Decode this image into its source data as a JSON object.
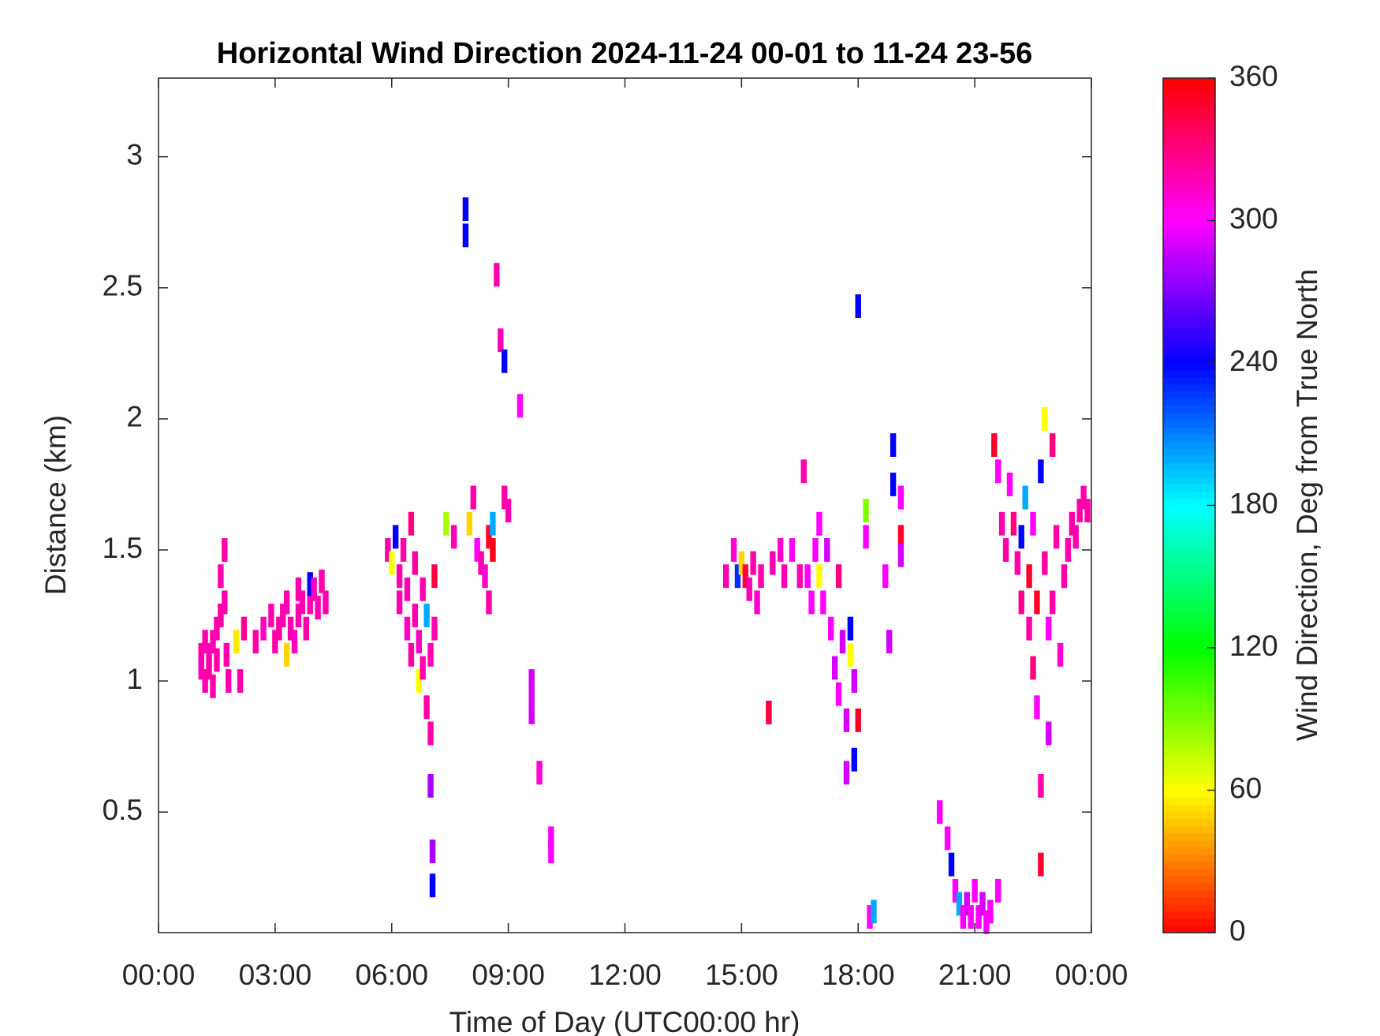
{
  "chart_data": {
    "type": "heatmap",
    "title": "Horizontal Wind Direction 2024-11-24 00-01 to 11-24 23-56",
    "xlabel": "Time of Day (UTC00:00 hr)",
    "ylabel": "Distance (km)",
    "colorbar_label": "Wind Direction, Deg from True North",
    "colormap": "hsv",
    "xlim": [
      0,
      24
    ],
    "xticks": [
      {
        "value": 0,
        "label": "00:00"
      },
      {
        "value": 3,
        "label": "03:00"
      },
      {
        "value": 6,
        "label": "06:00"
      },
      {
        "value": 9,
        "label": "09:00"
      },
      {
        "value": 12,
        "label": "12:00"
      },
      {
        "value": 15,
        "label": "15:00"
      },
      {
        "value": 18,
        "label": "18:00"
      },
      {
        "value": 21,
        "label": "21:00"
      },
      {
        "value": 24,
        "label": "00:00"
      }
    ],
    "ylim": [
      0.04,
      3.3
    ],
    "yticks": [
      0.5,
      1,
      1.5,
      2,
      2.5,
      3
    ],
    "clim": [
      0,
      360
    ],
    "cticks": [
      0,
      60,
      120,
      180,
      240,
      300,
      360
    ],
    "x": [
      1.1,
      1.1,
      1.2,
      1.2,
      1.3,
      1.3,
      1.4,
      1.4,
      1.5,
      1.5,
      1.6,
      1.6,
      1.7,
      1.7,
      1.75,
      1.8,
      2.0,
      2.1,
      2.2,
      2.5,
      2.7,
      2.9,
      3.0,
      3.1,
      3.2,
      3.3,
      3.3,
      3.4,
      3.5,
      3.6,
      3.6,
      3.7,
      3.8,
      3.9,
      3.9,
      4.0,
      4.1,
      4.2,
      4.3,
      5.9,
      6.0,
      6.1,
      6.2,
      6.2,
      6.3,
      6.4,
      6.4,
      6.5,
      6.5,
      6.6,
      6.6,
      6.7,
      6.7,
      6.8,
      6.8,
      6.9,
      6.9,
      7.0,
      7.0,
      7.0,
      7.05,
      7.05,
      7.1,
      7.1,
      7.4,
      7.6,
      7.9,
      7.9,
      8.0,
      8.1,
      8.2,
      8.3,
      8.4,
      8.5,
      8.5,
      8.6,
      8.6,
      8.7,
      8.8,
      8.9,
      8.9,
      9.0,
      9.3,
      9.6,
      9.6,
      9.6,
      9.8,
      10.1,
      10.1,
      14.6,
      14.8,
      14.9,
      15.0,
      15.1,
      15.2,
      15.3,
      15.4,
      15.5,
      15.7,
      15.8,
      16.0,
      16.1,
      16.3,
      16.5,
      16.6,
      16.7,
      16.8,
      16.9,
      17.0,
      17.0,
      17.1,
      17.2,
      17.3,
      17.4,
      17.5,
      17.5,
      17.6,
      17.7,
      17.7,
      17.8,
      17.8,
      17.9,
      17.9,
      18.0,
      18.0,
      18.2,
      18.2,
      18.3,
      18.4,
      18.7,
      18.8,
      18.9,
      18.9,
      19.1,
      19.1,
      19.1,
      20.1,
      20.3,
      20.4,
      20.5,
      20.6,
      20.7,
      20.8,
      20.9,
      21.0,
      21.1,
      21.2,
      21.3,
      21.4,
      21.6,
      21.5,
      21.6,
      21.7,
      21.8,
      21.9,
      22.0,
      22.1,
      22.2,
      22.2,
      22.3,
      22.4,
      22.4,
      22.5,
      22.5,
      22.6,
      22.6,
      22.7,
      22.7,
      22.7,
      22.8,
      22.8,
      22.9,
      22.9,
      23.0,
      23.0,
      23.1,
      23.2,
      23.3,
      23.4,
      23.5,
      23.6,
      23.7,
      23.8,
      23.9
    ],
    "y": [
      1.1,
      1.05,
      1.15,
      1.0,
      1.05,
      1.1,
      0.98,
      1.15,
      1.2,
      1.08,
      1.25,
      1.4,
      1.5,
      1.3,
      1.1,
      1.0,
      1.15,
      1.0,
      1.2,
      1.15,
      1.2,
      1.25,
      1.15,
      1.2,
      1.25,
      1.1,
      1.3,
      1.2,
      1.15,
      1.25,
      1.35,
      1.3,
      1.2,
      1.3,
      1.37,
      1.35,
      1.28,
      1.38,
      1.3,
      1.5,
      1.45,
      1.55,
      1.4,
      1.3,
      1.5,
      1.2,
      1.35,
      1.6,
      1.1,
      1.25,
      1.45,
      1.0,
      1.15,
      1.35,
      1.05,
      1.25,
      0.9,
      1.1,
      0.8,
      0.6,
      0.35,
      0.22,
      1.2,
      1.4,
      1.6,
      1.55,
      2.7,
      2.8,
      1.6,
      1.7,
      1.5,
      1.45,
      1.4,
      1.55,
      1.3,
      1.5,
      1.6,
      2.55,
      2.3,
      2.22,
      1.7,
      1.65,
      2.05,
      0.95,
      1.0,
      0.88,
      0.65,
      0.4,
      0.35,
      1.4,
      1.5,
      1.4,
      1.45,
      1.4,
      1.35,
      1.45,
      1.3,
      1.4,
      0.88,
      1.45,
      1.5,
      1.4,
      1.5,
      1.4,
      1.8,
      1.4,
      1.3,
      1.5,
      1.4,
      1.6,
      1.3,
      1.5,
      1.2,
      1.05,
      1.4,
      0.95,
      1.15,
      0.85,
      0.65,
      1.1,
      1.2,
      0.7,
      1.0,
      0.85,
      2.43,
      1.55,
      1.65,
      0.1,
      0.12,
      1.4,
      1.15,
      1.9,
      1.75,
      1.7,
      1.55,
      1.48,
      0.5,
      0.4,
      0.3,
      0.2,
      0.15,
      0.1,
      0.15,
      0.1,
      0.2,
      0.1,
      0.15,
      0.08,
      0.12,
      0.2,
      1.9,
      1.8,
      1.6,
      1.5,
      1.75,
      1.6,
      1.45,
      1.3,
      1.55,
      1.7,
      1.4,
      1.2,
      1.6,
      1.05,
      1.3,
      0.9,
      1.8,
      0.6,
      0.3,
      2.0,
      1.45,
      1.2,
      0.8,
      1.9,
      1.3,
      1.55,
      1.1,
      1.4,
      1.5,
      1.6,
      1.55,
      1.65,
      1.7,
      1.65
    ],
    "values": [
      320,
      315,
      320,
      318,
      322,
      318,
      320,
      316,
      318,
      320,
      322,
      320,
      320,
      318,
      320,
      318,
      55,
      320,
      325,
      320,
      315,
      318,
      320,
      322,
      318,
      50,
      318,
      320,
      315,
      318,
      320,
      318,
      320,
      318,
      240,
      315,
      318,
      320,
      318,
      320,
      60,
      240,
      320,
      318,
      320,
      315,
      318,
      330,
      320,
      318,
      320,
      60,
      315,
      318,
      318,
      200,
      320,
      318,
      320,
      280,
      280,
      240,
      318,
      345,
      80,
      318,
      240,
      240,
      50,
      320,
      300,
      320,
      310,
      350,
      320,
      355,
      200,
      318,
      318,
      240,
      320,
      318,
      300,
      290,
      290,
      290,
      310,
      300,
      300,
      318,
      310,
      230,
      50,
      345,
      318,
      320,
      310,
      318,
      345,
      318,
      310,
      318,
      300,
      318,
      318,
      300,
      300,
      300,
      60,
      300,
      300,
      290,
      300,
      290,
      330,
      300,
      290,
      290,
      290,
      60,
      240,
      240,
      290,
      350,
      240,
      300,
      90,
      300,
      200,
      300,
      290,
      240,
      240,
      300,
      350,
      290,
      300,
      300,
      240,
      300,
      200,
      300,
      290,
      300,
      300,
      300,
      290,
      300,
      300,
      300,
      350,
      300,
      320,
      320,
      300,
      330,
      320,
      325,
      240,
      200,
      350,
      320,
      300,
      330,
      350,
      300,
      240,
      320,
      350,
      60,
      320,
      300,
      290,
      330,
      320,
      320,
      310,
      320,
      318,
      320,
      318,
      320,
      318,
      320
    ]
  }
}
